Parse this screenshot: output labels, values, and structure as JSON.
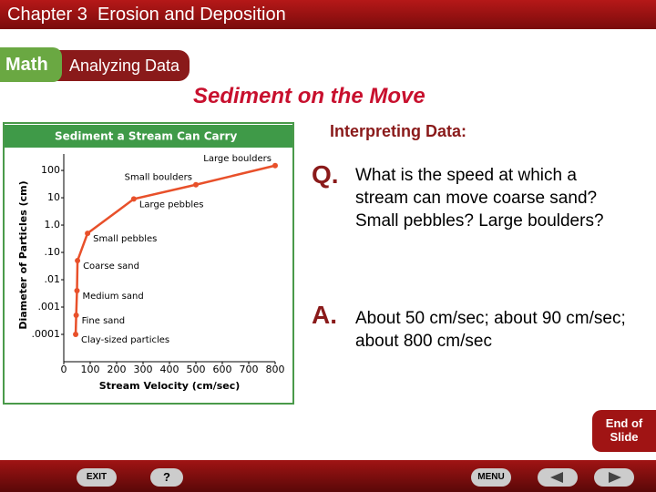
{
  "header": {
    "chapter": "Chapter 3  Erosion and Deposition",
    "badge": "Math",
    "section": "Analyzing Data"
  },
  "title": "Sediment on the Move",
  "subtitle": "Interpreting Data:",
  "question": {
    "marker": "Q.",
    "text": "What is the speed at which a stream can move coarse sand? Small pebbles? Large boulders?"
  },
  "answer": {
    "marker": "A.",
    "text": "About 50 cm/sec; about 90 cm/sec; about 800 cm/sec"
  },
  "chart_data": {
    "type": "line",
    "title": "Sediment a Stream Can Carry",
    "x_label": "Stream Velocity (cm/sec)",
    "y_label": "Diameter of Particles (cm)",
    "x": [
      45,
      47,
      50,
      52,
      90,
      265,
      500,
      800
    ],
    "series": [
      {
        "color": "#e8502a",
        "values": [
          0.0001,
          0.0005,
          0.004,
          0.05,
          0.5,
          9,
          30,
          150
        ],
        "labels": [
          "Clay-sized particles",
          "Fine sand",
          "Medium sand",
          "Coarse sand",
          "Small pebbles",
          "Large pebbles",
          "Small boulders",
          "Large boulders"
        ]
      }
    ],
    "xlim": [
      0,
      800
    ],
    "xticks": [
      0,
      100,
      200,
      300,
      400,
      500,
      600,
      700,
      800
    ],
    "ylim": [
      1e-05,
      400
    ],
    "log_y": true,
    "yticks": [
      100,
      10,
      {
        "value": 1,
        "label": "1.0"
      },
      {
        "value": 0.1,
        "label": ".10"
      },
      {
        "value": 0.01,
        "label": ".01"
      },
      {
        "value": 0.001,
        "label": ".001"
      },
      {
        "value": 0.0001,
        "label": ".0001"
      }
    ]
  },
  "footer": {
    "end": "End of Slide",
    "exit": "EXIT",
    "help": "?",
    "menu": "MENU"
  }
}
